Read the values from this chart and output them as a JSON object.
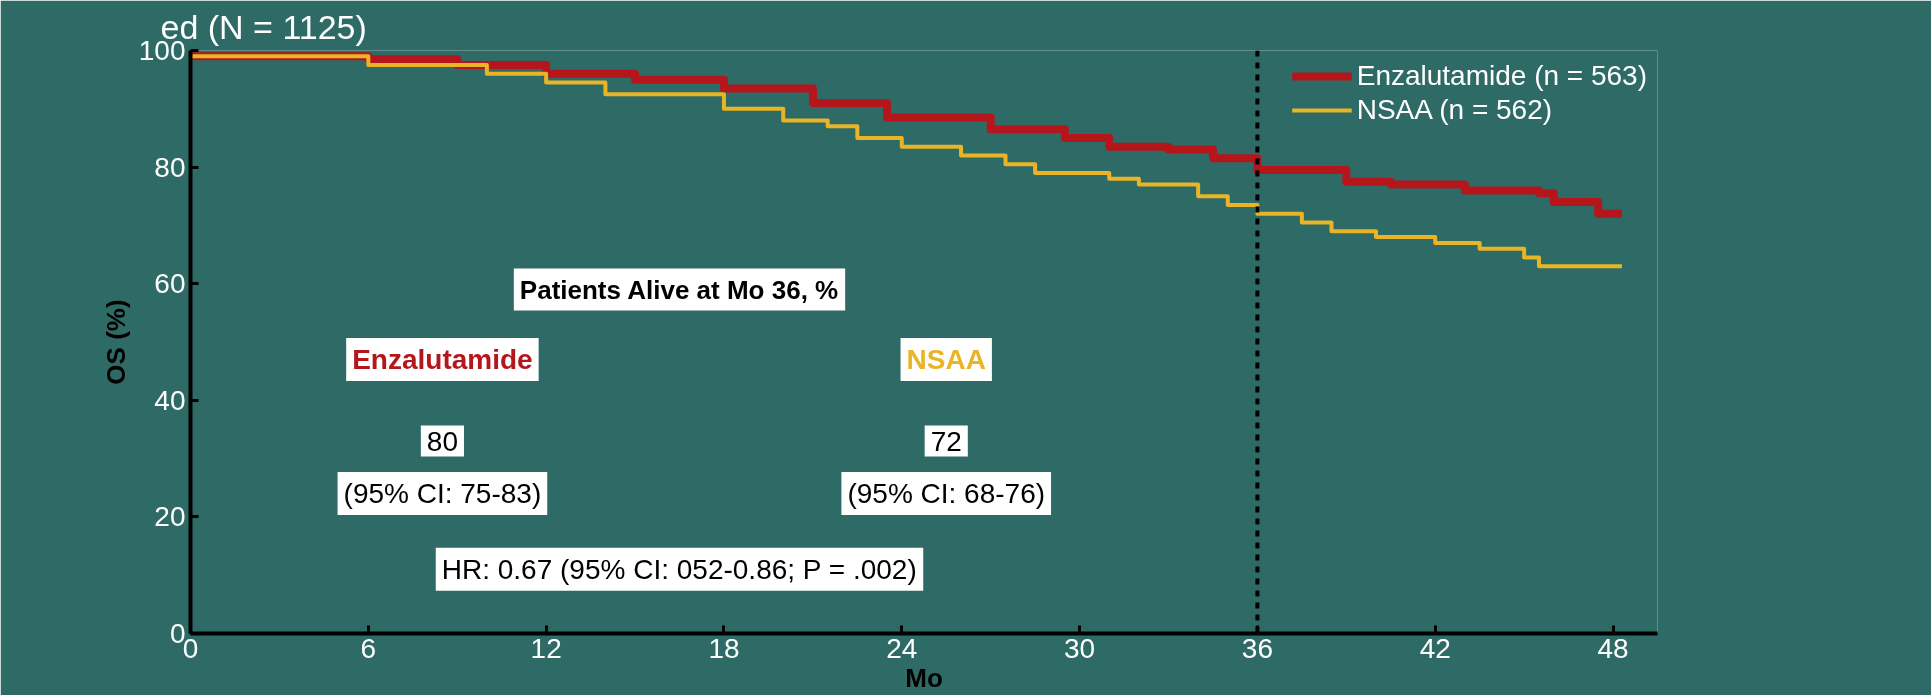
{
  "chart_data": {
    "type": "step",
    "title": "ed (N = 1125)",
    "xlabel": "Mo",
    "ylabel": "OS (%)",
    "xlim": [
      0,
      49.5
    ],
    "ylim": [
      0,
      100
    ],
    "xticks": [
      0,
      6,
      12,
      18,
      24,
      30,
      36,
      42,
      48
    ],
    "yticks": [
      0,
      20,
      40,
      60,
      80,
      100
    ],
    "legend": "top right",
    "grid": false,
    "line_style": "solid",
    "series": [
      {
        "name": "Enzalutamide (n = 563)",
        "color": "#b5161b",
        "x": [
          0,
          6,
          9,
          12,
          15,
          18,
          21,
          23.5,
          27,
          29.5,
          31,
          33,
          34.5,
          36,
          39,
          40.5,
          43,
          45.5,
          46,
          47.5,
          48.3
        ],
        "values": [
          99,
          98.5,
          97.5,
          96,
          95,
          93.5,
          91,
          88.5,
          86.5,
          85,
          83.5,
          83,
          81.5,
          79.5,
          77.5,
          77,
          76,
          75.5,
          74,
          72,
          72
        ]
      },
      {
        "name": "NSAA (n = 562)",
        "color": "#e9b526",
        "x": [
          0,
          6,
          10,
          12,
          14,
          18,
          20,
          21.5,
          22.5,
          24,
          26,
          27.5,
          28.5,
          31,
          32,
          34,
          35,
          36,
          37.5,
          38.5,
          40,
          42,
          43.5,
          45,
          45.5,
          48.3
        ],
        "values": [
          99,
          97.5,
          96,
          94.5,
          92.5,
          90,
          88,
          87,
          85,
          83.5,
          82,
          80.5,
          79,
          78,
          77,
          75,
          73.5,
          72,
          70.5,
          69,
          68,
          67,
          66,
          64.5,
          63,
          63
        ]
      }
    ],
    "ref_lines": [
      {
        "axis": "x",
        "value": 36,
        "color": "#000000",
        "line_style": "dashed"
      }
    ],
    "annotations": [
      "Patients Alive at Mo 36, %",
      "Enzalutamide",
      "NSAA",
      "80",
      "(95% CI: 75-83)",
      "72",
      "(95% CI: 68-76)",
      "HR: 0.67 (95% CI: 052-0.86; P = .002)"
    ]
  }
}
